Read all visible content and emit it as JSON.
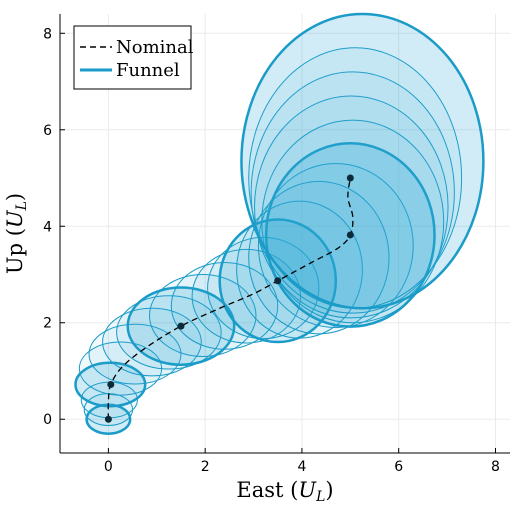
{
  "chart_data": {
    "type": "scatter",
    "xlabel_main": "East",
    "xlabel_unit_base": "U",
    "xlabel_unit_sub": "L",
    "ylabel_main": "Up",
    "ylabel_unit_base": "U",
    "ylabel_unit_sub": "L",
    "xlim": [
      -1,
      8.3
    ],
    "ylim": [
      -0.7,
      8.4
    ],
    "xticks": [
      0,
      2,
      4,
      6,
      8
    ],
    "yticks": [
      0,
      2,
      4,
      6,
      8
    ],
    "grid": true,
    "legend": {
      "position": "top-left",
      "entries": [
        {
          "label": "Nominal",
          "style": "dashed",
          "color": "#000000"
        },
        {
          "label": "Funnel",
          "style": "solid",
          "color": "#1a9bc8"
        }
      ]
    },
    "nominal_waypoints": [
      {
        "x": 0.0,
        "y": 0.0
      },
      {
        "x": 0.05,
        "y": 0.72
      },
      {
        "x": 1.5,
        "y": 1.93
      },
      {
        "x": 3.5,
        "y": 2.87
      },
      {
        "x": 5.0,
        "y": 3.82
      },
      {
        "x": 5.0,
        "y": 5.0
      }
    ],
    "nominal_path": [
      [
        0.0,
        0.0
      ],
      [
        0.0,
        0.35
      ],
      [
        0.05,
        0.72
      ],
      [
        0.3,
        1.1
      ],
      [
        0.8,
        1.5
      ],
      [
        1.5,
        1.93
      ],
      [
        2.3,
        2.3
      ],
      [
        3.0,
        2.6
      ],
      [
        3.5,
        2.87
      ],
      [
        4.2,
        3.25
      ],
      [
        4.75,
        3.55
      ],
      [
        5.0,
        3.82
      ],
      [
        5.05,
        4.2
      ],
      [
        4.95,
        4.6
      ],
      [
        5.0,
        5.0
      ]
    ],
    "funnel_ellipses": [
      {
        "cx": 0.0,
        "cy": 0.0,
        "rx": 0.45,
        "ry": 0.3,
        "bold": true
      },
      {
        "cx": 0.0,
        "cy": 0.2,
        "rx": 0.5,
        "ry": 0.33,
        "bold": false
      },
      {
        "cx": 0.02,
        "cy": 0.4,
        "rx": 0.58,
        "ry": 0.37,
        "bold": false
      },
      {
        "cx": 0.04,
        "cy": 0.72,
        "rx": 0.72,
        "ry": 0.45,
        "bold": true
      },
      {
        "cx": 0.25,
        "cy": 1.05,
        "rx": 0.85,
        "ry": 0.55,
        "bold": false
      },
      {
        "cx": 0.55,
        "cy": 1.35,
        "rx": 0.95,
        "ry": 0.62,
        "bold": false
      },
      {
        "cx": 0.9,
        "cy": 1.6,
        "rx": 1.02,
        "ry": 0.7,
        "bold": false
      },
      {
        "cx": 1.25,
        "cy": 1.8,
        "rx": 1.08,
        "ry": 0.76,
        "bold": false
      },
      {
        "cx": 1.5,
        "cy": 1.93,
        "rx": 1.1,
        "ry": 0.8,
        "bold": true
      },
      {
        "cx": 1.95,
        "cy": 2.15,
        "rx": 1.1,
        "ry": 0.85,
        "bold": false
      },
      {
        "cx": 2.4,
        "cy": 2.35,
        "rx": 1.1,
        "ry": 0.9,
        "bold": false
      },
      {
        "cx": 2.85,
        "cy": 2.55,
        "rx": 1.12,
        "ry": 0.97,
        "bold": false
      },
      {
        "cx": 3.2,
        "cy": 2.72,
        "rx": 1.15,
        "ry": 1.05,
        "bold": false
      },
      {
        "cx": 3.5,
        "cy": 2.87,
        "rx": 1.2,
        "ry": 1.27,
        "bold": true
      },
      {
        "cx": 3.95,
        "cy": 3.1,
        "rx": 1.3,
        "ry": 1.42,
        "bold": false
      },
      {
        "cx": 4.35,
        "cy": 3.35,
        "rx": 1.45,
        "ry": 1.58,
        "bold": false
      },
      {
        "cx": 4.7,
        "cy": 3.6,
        "rx": 1.6,
        "ry": 1.7,
        "bold": false
      },
      {
        "cx": 5.0,
        "cy": 3.82,
        "rx": 1.74,
        "ry": 1.9,
        "bold": true
      },
      {
        "cx": 5.05,
        "cy": 4.1,
        "rx": 1.88,
        "ry": 2.1,
        "bold": false
      },
      {
        "cx": 5.02,
        "cy": 4.4,
        "rx": 2.0,
        "ry": 2.3,
        "bold": false
      },
      {
        "cx": 5.05,
        "cy": 4.7,
        "rx": 2.1,
        "ry": 2.5,
        "bold": false
      },
      {
        "cx": 5.1,
        "cy": 5.0,
        "rx": 2.2,
        "ry": 2.7,
        "bold": false
      },
      {
        "cx": 5.25,
        "cy": 5.35,
        "rx": 2.5,
        "ry": 3.05,
        "bold": true
      }
    ],
    "colors": {
      "funnel_stroke": "#1a9bc8",
      "funnel_fill": "#2ea8d5",
      "nominal": "#000000",
      "waypoint": "#0b2a3a",
      "grid": "#ebebeb",
      "axis": "#000000"
    }
  }
}
